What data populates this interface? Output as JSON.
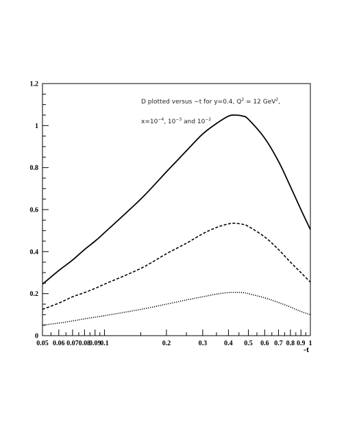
{
  "chart_data": {
    "type": "line",
    "xscale": "log",
    "xlim": [
      0.05,
      1
    ],
    "ylim": [
      0,
      1.2
    ],
    "xlabel": "-t",
    "ylabel": "",
    "grid": false,
    "x_tick_labels": [
      "0.05",
      "0.06",
      "0.07",
      "0.08",
      "0.09",
      "0.1",
      "0.2",
      "0.3",
      "0.4",
      "0.5",
      "0.6",
      "0.7",
      "0.8",
      "0.9",
      "1"
    ],
    "x_tick_values": [
      0.05,
      0.06,
      0.07,
      0.08,
      0.09,
      0.1,
      0.2,
      0.3,
      0.4,
      0.5,
      0.6,
      0.7,
      0.8,
      0.9,
      1
    ],
    "y_tick_labels": [
      "0",
      "0.2",
      "0.4",
      "0.6",
      "0.8",
      "1",
      "1.2"
    ],
    "y_tick_values": [
      0,
      0.2,
      0.4,
      0.6,
      0.8,
      1.0,
      1.2
    ],
    "annotation": {
      "line1_pre": "D plotted versus −t for y=0.4, Q",
      "line1_sup1": "2",
      "line1_mid": " = 12 GeV",
      "line1_sup2": "2",
      "line1_post": ",",
      "line2_pre": "x=10",
      "line2_sup1": "−4",
      "line2_mid1": ", 10",
      "line2_sup2": "−3",
      "line2_mid2": " and 10",
      "line2_sup3": "−2"
    },
    "series": [
      {
        "style": "solid",
        "x": [
          0.05,
          0.06,
          0.07,
          0.08,
          0.09,
          0.1,
          0.15,
          0.2,
          0.25,
          0.3,
          0.35,
          0.4,
          0.43,
          0.47,
          0.5,
          0.6,
          0.7,
          0.8,
          0.9,
          1.0
        ],
        "y": [
          0.245,
          0.31,
          0.36,
          0.41,
          0.45,
          0.49,
          0.65,
          0.78,
          0.88,
          0.96,
          1.01,
          1.045,
          1.05,
          1.045,
          1.03,
          0.94,
          0.83,
          0.71,
          0.6,
          0.505
        ]
      },
      {
        "style": "dashed",
        "x": [
          0.05,
          0.06,
          0.07,
          0.08,
          0.09,
          0.1,
          0.15,
          0.2,
          0.25,
          0.3,
          0.35,
          0.4,
          0.43,
          0.47,
          0.5,
          0.6,
          0.7,
          0.8,
          0.9,
          1.0
        ],
        "y": [
          0.125,
          0.155,
          0.185,
          0.205,
          0.225,
          0.245,
          0.32,
          0.39,
          0.44,
          0.485,
          0.515,
          0.532,
          0.535,
          0.53,
          0.52,
          0.47,
          0.41,
          0.35,
          0.3,
          0.255
        ]
      },
      {
        "style": "dotted",
        "x": [
          0.05,
          0.06,
          0.07,
          0.08,
          0.09,
          0.1,
          0.15,
          0.2,
          0.25,
          0.3,
          0.35,
          0.4,
          0.43,
          0.47,
          0.5,
          0.6,
          0.7,
          0.8,
          0.9,
          1.0
        ],
        "y": [
          0.05,
          0.06,
          0.07,
          0.08,
          0.088,
          0.095,
          0.125,
          0.15,
          0.17,
          0.185,
          0.198,
          0.205,
          0.206,
          0.205,
          0.2,
          0.18,
          0.158,
          0.136,
          0.115,
          0.1
        ]
      }
    ]
  }
}
